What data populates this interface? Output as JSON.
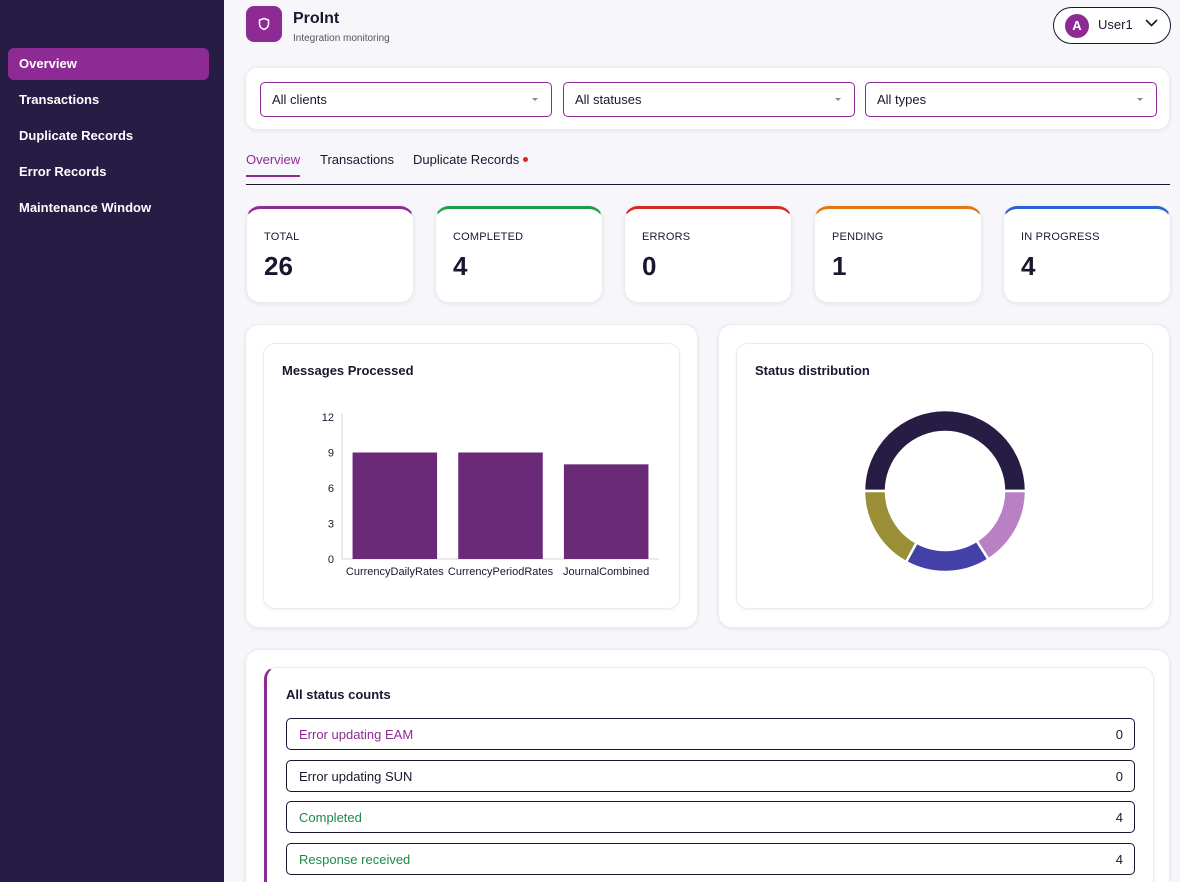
{
  "sidebar": {
    "items": [
      {
        "label": "Overview",
        "active": true
      },
      {
        "label": "Transactions"
      },
      {
        "label": "Duplicate Records"
      },
      {
        "label": "Error Records"
      },
      {
        "label": "Maintenance Window"
      }
    ]
  },
  "header": {
    "title": "ProInt",
    "subtitle": "Integration monitoring",
    "icon": "shield-icon",
    "user": {
      "initial": "A",
      "name": "User1"
    }
  },
  "filters": [
    {
      "value": "All clients"
    },
    {
      "value": "All statuses"
    },
    {
      "value": "All types"
    }
  ],
  "tabs": [
    {
      "label": "Overview",
      "active": true
    },
    {
      "label": "Transactions"
    },
    {
      "label": "Duplicate Records",
      "has_notification": true
    }
  ],
  "stats": [
    {
      "label": "TOTAL",
      "value": "26",
      "color": "#8e2a94"
    },
    {
      "label": "COMPLETED",
      "value": "4",
      "color": "#1e9e4a"
    },
    {
      "label": "ERRORS",
      "value": "0",
      "color": "#d42a25"
    },
    {
      "label": "PENDING",
      "value": "1",
      "color": "#e07a10"
    },
    {
      "label": "IN PROGRESS",
      "value": "4",
      "color": "#2a63d6"
    }
  ],
  "charts": {
    "messages_title": "Messages Processed",
    "status_title": "Status distribution"
  },
  "chart_data": [
    {
      "type": "bar",
      "title": "Messages Processed",
      "categories": [
        "CurrencyDailyRates",
        "CurrencyPeriodRates",
        "JournalCombined"
      ],
      "values": [
        9,
        9,
        8
      ],
      "ylim": [
        0,
        12
      ],
      "yticks": [
        0,
        3,
        6,
        9,
        12
      ],
      "color": "#6b2a78",
      "grid": false,
      "legend": false
    },
    {
      "type": "pie",
      "title": "Status distribution",
      "donut": true,
      "values": [
        50,
        16,
        17,
        17
      ],
      "colors": [
        "#261c44",
        "#b980c4",
        "#4340a8",
        "#9a8f36"
      ],
      "legend": false
    }
  ],
  "counts": {
    "title": "All status counts",
    "rows": [
      {
        "label": "Error updating EAM",
        "value": "0",
        "color": "#8e2a94"
      },
      {
        "label": "Error updating SUN",
        "value": "0",
        "color": "#1d1530"
      },
      {
        "label": "Completed",
        "value": "4",
        "color": "#1e8a45"
      },
      {
        "label": "Response received",
        "value": "4",
        "color": "#1e8a45"
      }
    ]
  }
}
